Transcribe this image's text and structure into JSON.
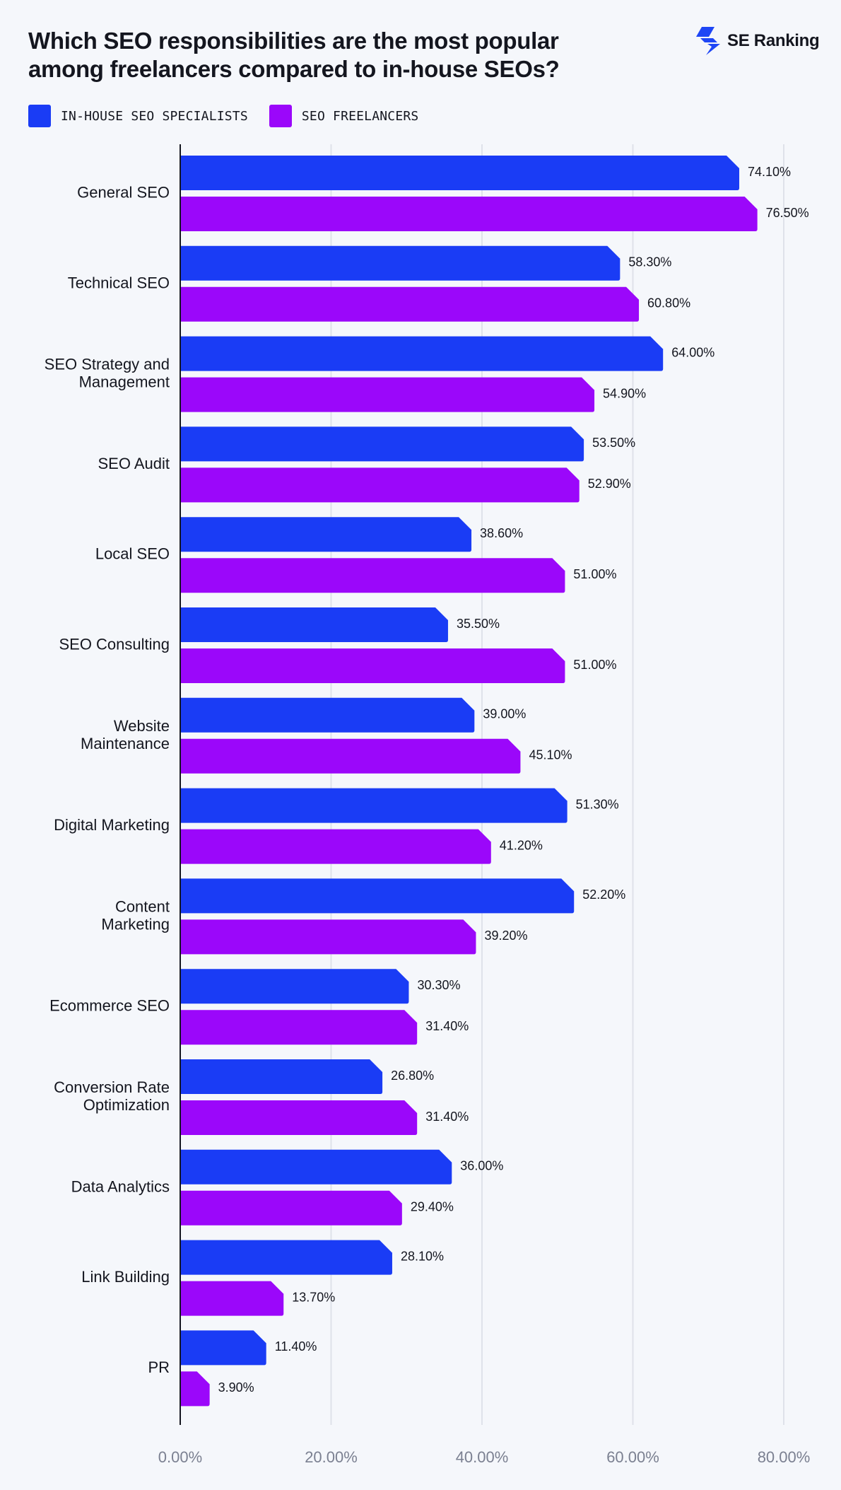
{
  "header": {
    "title_line1": "Which SEO responsibilities are the most popular",
    "title_line2": "among freelancers compared to in-house SEOs?",
    "brand_name": "SE Ranking",
    "brand_icon": "se-ranking-logo-icon",
    "brand_color": "#1e46f5"
  },
  "legend": {
    "items": [
      {
        "label": "IN-HOUSE SEO SPECIALISTS",
        "color": "#1a3cf5"
      },
      {
        "label": "SEO FREELANCERS",
        "color": "#9b07fa"
      }
    ]
  },
  "chart_data": {
    "type": "bar",
    "orientation": "horizontal",
    "title": "Which SEO responsibilities are the most popular among freelancers compared to in-house SEOs?",
    "categories": [
      [
        "General SEO"
      ],
      [
        "Technical SEO"
      ],
      [
        "SEO Strategy and",
        "Management"
      ],
      [
        "SEO Audit"
      ],
      [
        "Local SEO"
      ],
      [
        "SEO Consulting"
      ],
      [
        "Website",
        "Maintenance"
      ],
      [
        "Digital Marketing"
      ],
      [
        "Content",
        "Marketing"
      ],
      [
        "Ecommerce SEO"
      ],
      [
        "Conversion Rate",
        "Optimization"
      ],
      [
        "Data Analytics"
      ],
      [
        "Link Building"
      ],
      [
        "PR"
      ]
    ],
    "series": [
      {
        "name": "IN-HOUSE SEO SPECIALISTS",
        "color": "#1a3cf5",
        "values": [
          74.1,
          58.3,
          64.0,
          53.5,
          38.6,
          35.5,
          39.0,
          51.3,
          52.2,
          30.3,
          26.8,
          36.0,
          28.1,
          11.4
        ],
        "labels": [
          "74.10%",
          "58.30%",
          "64.00%",
          "53.50%",
          "38.60%",
          "35.50%",
          "39.00%",
          "51.30%",
          "52.20%",
          "30.30%",
          "26.80%",
          "36.00%",
          "28.10%",
          "11.40%"
        ]
      },
      {
        "name": "SEO FREELANCERS",
        "color": "#9b07fa",
        "values": [
          76.5,
          60.8,
          54.9,
          52.9,
          51.0,
          51.0,
          45.1,
          41.2,
          39.2,
          31.4,
          31.4,
          29.4,
          13.7,
          3.9
        ],
        "labels": [
          "76.50%",
          "60.80%",
          "54.90%",
          "52.90%",
          "51.00%",
          "51.00%",
          "45.10%",
          "41.20%",
          "39.20%",
          "31.40%",
          "31.40%",
          "29.40%",
          "13.70%",
          "3.90%"
        ]
      }
    ],
    "xlim": [
      0,
      80
    ],
    "xticks": [
      0,
      20,
      40,
      60,
      80
    ],
    "xtick_labels": [
      "0.00%",
      "20.00%",
      "40.00%",
      "60.00%",
      "80.00%"
    ],
    "grid": "vertical",
    "legend_position": "top-left"
  }
}
